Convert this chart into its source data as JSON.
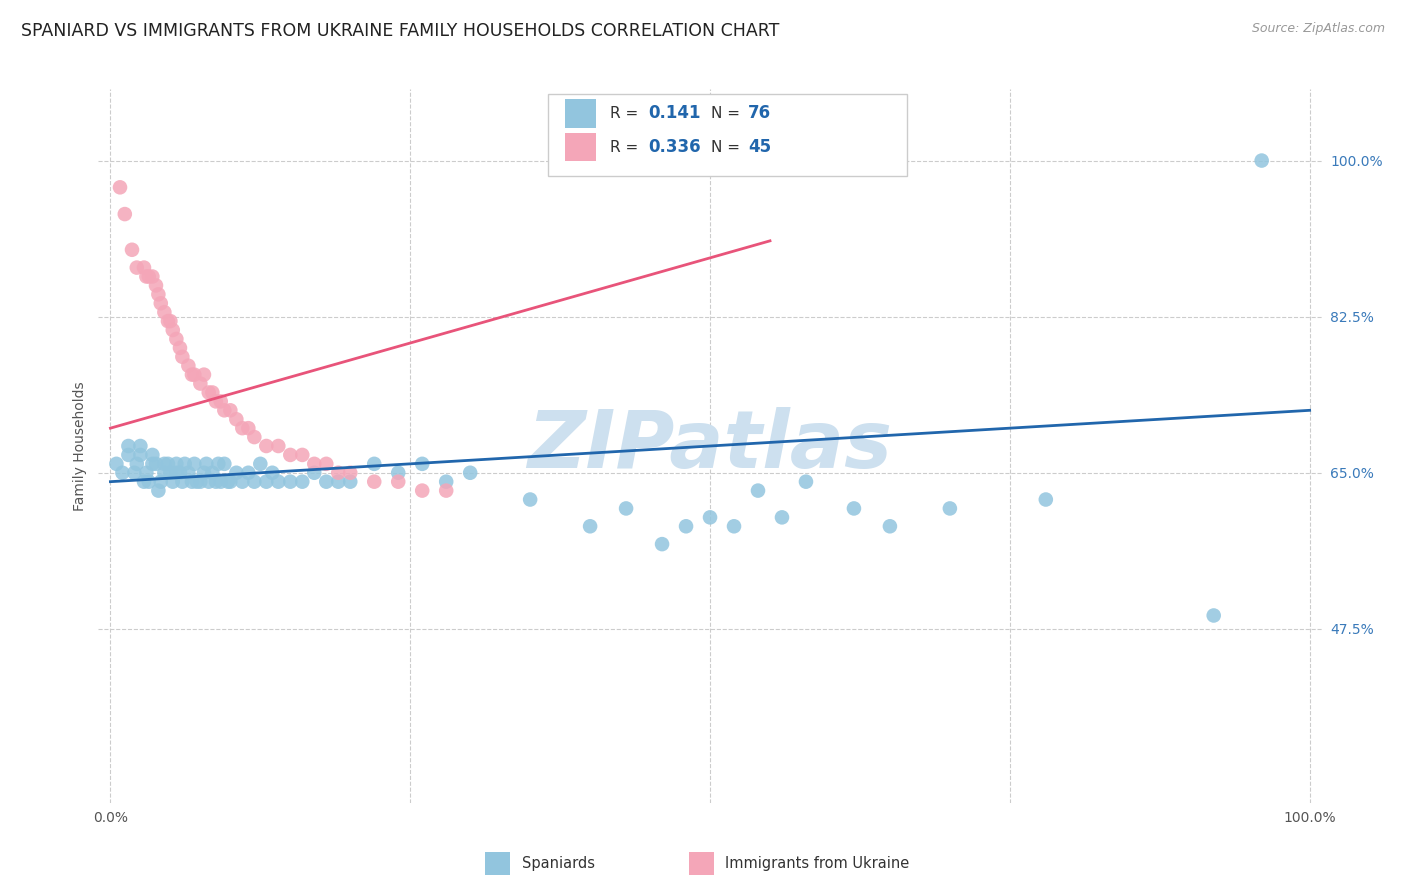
{
  "title": "SPANIARD VS IMMIGRANTS FROM UKRAINE FAMILY HOUSEHOLDS CORRELATION CHART",
  "source": "Source: ZipAtlas.com",
  "ylabel": "Family Households",
  "yticks": [
    0.475,
    0.65,
    0.825,
    1.0
  ],
  "ytick_labels": [
    "47.5%",
    "65.0%",
    "82.5%",
    "100.0%"
  ],
  "xtick_labels": [
    "0.0%",
    "100.0%"
  ],
  "xlim": [
    -0.01,
    1.01
  ],
  "ylim": [
    0.28,
    1.08
  ],
  "blue_color": "#92c5de",
  "pink_color": "#f4a6b8",
  "blue_line_color": "#2166ac",
  "pink_line_color": "#e8547a",
  "watermark": "ZIPatlas",
  "watermark_color": "#cde0ef",
  "watermark_fontsize": 58,
  "spaniards_x": [
    0.005,
    0.01,
    0.015,
    0.015,
    0.02,
    0.022,
    0.025,
    0.025,
    0.028,
    0.03,
    0.032,
    0.035,
    0.035,
    0.038,
    0.04,
    0.042,
    0.045,
    0.045,
    0.048,
    0.05,
    0.052,
    0.055,
    0.055,
    0.058,
    0.06,
    0.062,
    0.065,
    0.068,
    0.07,
    0.072,
    0.075,
    0.078,
    0.08,
    0.082,
    0.085,
    0.088,
    0.09,
    0.092,
    0.095,
    0.098,
    0.1,
    0.105,
    0.11,
    0.115,
    0.12,
    0.125,
    0.13,
    0.135,
    0.14,
    0.15,
    0.16,
    0.17,
    0.18,
    0.19,
    0.2,
    0.22,
    0.24,
    0.26,
    0.28,
    0.3,
    0.35,
    0.4,
    0.43,
    0.46,
    0.48,
    0.5,
    0.52,
    0.54,
    0.56,
    0.58,
    0.62,
    0.65,
    0.7,
    0.78,
    0.92,
    0.96
  ],
  "spaniards_y": [
    0.66,
    0.65,
    0.67,
    0.68,
    0.65,
    0.66,
    0.67,
    0.68,
    0.64,
    0.65,
    0.64,
    0.66,
    0.67,
    0.66,
    0.63,
    0.64,
    0.65,
    0.66,
    0.66,
    0.65,
    0.64,
    0.65,
    0.66,
    0.65,
    0.64,
    0.66,
    0.65,
    0.64,
    0.66,
    0.64,
    0.64,
    0.65,
    0.66,
    0.64,
    0.65,
    0.64,
    0.66,
    0.64,
    0.66,
    0.64,
    0.64,
    0.65,
    0.64,
    0.65,
    0.64,
    0.66,
    0.64,
    0.65,
    0.64,
    0.64,
    0.64,
    0.65,
    0.64,
    0.64,
    0.64,
    0.66,
    0.65,
    0.66,
    0.64,
    0.65,
    0.62,
    0.59,
    0.61,
    0.57,
    0.59,
    0.6,
    0.59,
    0.63,
    0.6,
    0.64,
    0.61,
    0.59,
    0.61,
    0.62,
    0.49,
    1.0
  ],
  "ukraine_x": [
    0.008,
    0.012,
    0.018,
    0.022,
    0.028,
    0.03,
    0.032,
    0.035,
    0.038,
    0.04,
    0.042,
    0.045,
    0.048,
    0.05,
    0.052,
    0.055,
    0.058,
    0.06,
    0.065,
    0.068,
    0.07,
    0.075,
    0.078,
    0.082,
    0.085,
    0.088,
    0.092,
    0.095,
    0.1,
    0.105,
    0.11,
    0.115,
    0.12,
    0.13,
    0.14,
    0.15,
    0.16,
    0.17,
    0.18,
    0.19,
    0.2,
    0.22,
    0.24,
    0.26,
    0.28
  ],
  "ukraine_y": [
    0.97,
    0.94,
    0.9,
    0.88,
    0.88,
    0.87,
    0.87,
    0.87,
    0.86,
    0.85,
    0.84,
    0.83,
    0.82,
    0.82,
    0.81,
    0.8,
    0.79,
    0.78,
    0.77,
    0.76,
    0.76,
    0.75,
    0.76,
    0.74,
    0.74,
    0.73,
    0.73,
    0.72,
    0.72,
    0.71,
    0.7,
    0.7,
    0.69,
    0.68,
    0.68,
    0.67,
    0.67,
    0.66,
    0.66,
    0.65,
    0.65,
    0.64,
    0.64,
    0.63,
    0.63
  ],
  "blue_trend_x": [
    0.0,
    1.0
  ],
  "blue_trend_y": [
    0.64,
    0.72
  ],
  "pink_trend_x": [
    0.0,
    0.55
  ],
  "pink_trend_y": [
    0.7,
    0.91
  ],
  "background_color": "#ffffff",
  "grid_color": "#cccccc",
  "title_fontsize": 12.5,
  "axis_label_fontsize": 10,
  "tick_fontsize": 10,
  "legend_r1_val": "0.141",
  "legend_n1_val": "76",
  "legend_r2_val": "0.336",
  "legend_n2_val": "45"
}
